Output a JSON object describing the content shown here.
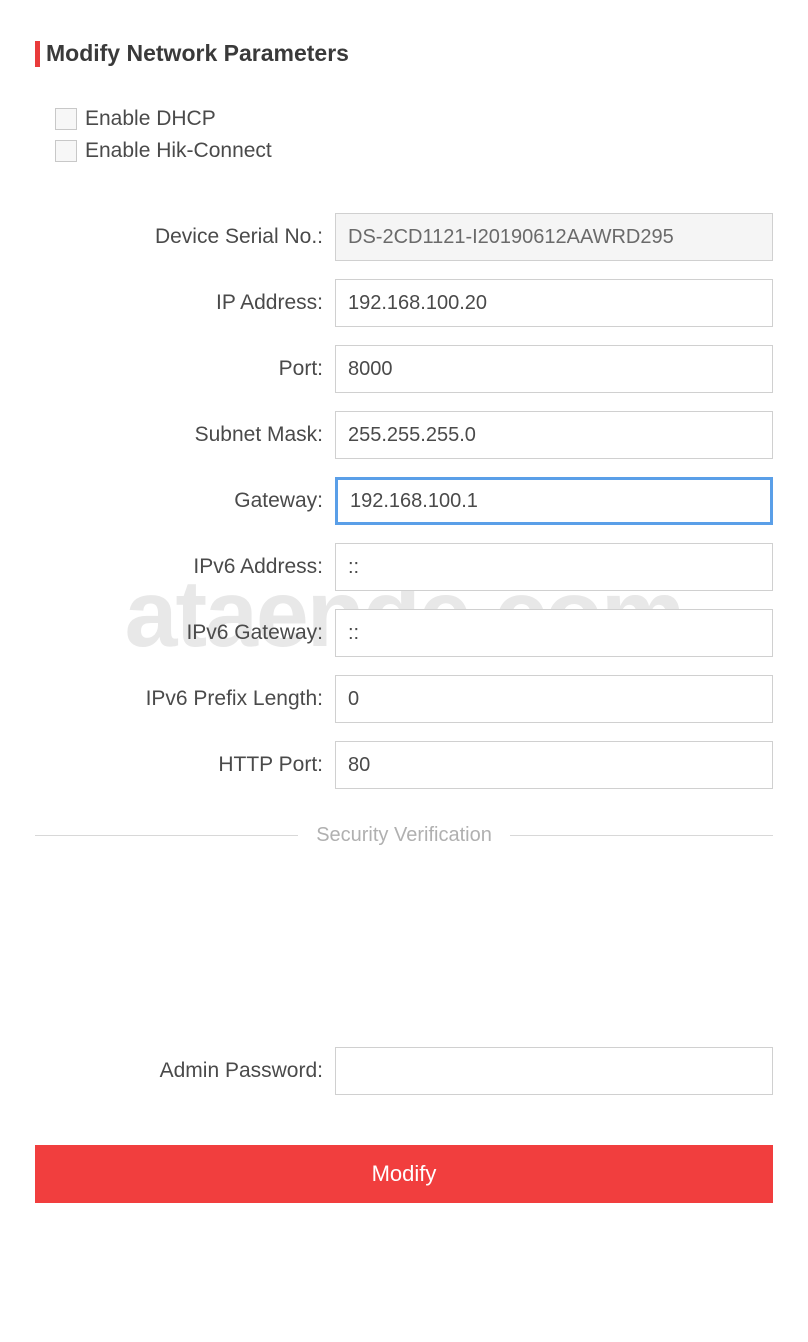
{
  "header": {
    "title": "Modify Network Parameters",
    "accent_color": "#e93b3b"
  },
  "checkboxes": {
    "dhcp": {
      "label": "Enable DHCP",
      "checked": false
    },
    "hik_connect": {
      "label": "Enable Hik-Connect",
      "checked": false
    }
  },
  "fields": {
    "device_serial": {
      "label": "Device Serial No.:",
      "value": "DS-2CD1121-I20190612AAWRD295",
      "readonly": true
    },
    "ip_address": {
      "label": "IP Address:",
      "value": "192.168.100.20"
    },
    "port": {
      "label": "Port:",
      "value": "8000"
    },
    "subnet_mask": {
      "label": "Subnet Mask:",
      "value": "255.255.255.0"
    },
    "gateway": {
      "label": "Gateway:",
      "value": "192.168.100.1",
      "focused": true
    },
    "ipv6_address": {
      "label": "IPv6 Address:",
      "value": "::"
    },
    "ipv6_gateway": {
      "label": "IPv6 Gateway:",
      "value": "::"
    },
    "ipv6_prefix": {
      "label": "IPv6 Prefix Length:",
      "value": "0"
    },
    "http_port": {
      "label": "HTTP Port:",
      "value": "80"
    },
    "admin_password": {
      "label": "Admin Password:",
      "value": ""
    }
  },
  "divider": {
    "text": "Security Verification"
  },
  "button": {
    "modify_label": "Modify",
    "bg_color": "#f13e3e"
  },
  "watermark": {
    "text": "ataende.com",
    "color": "#e8e8e8"
  },
  "colors": {
    "text_primary": "#4a4a4a",
    "text_heading": "#3a3a3a",
    "border_input": "#d0d0d0",
    "border_focus": "#5a9fe8",
    "divider_line": "#d8d8d8",
    "divider_text": "#b0b0b0"
  }
}
